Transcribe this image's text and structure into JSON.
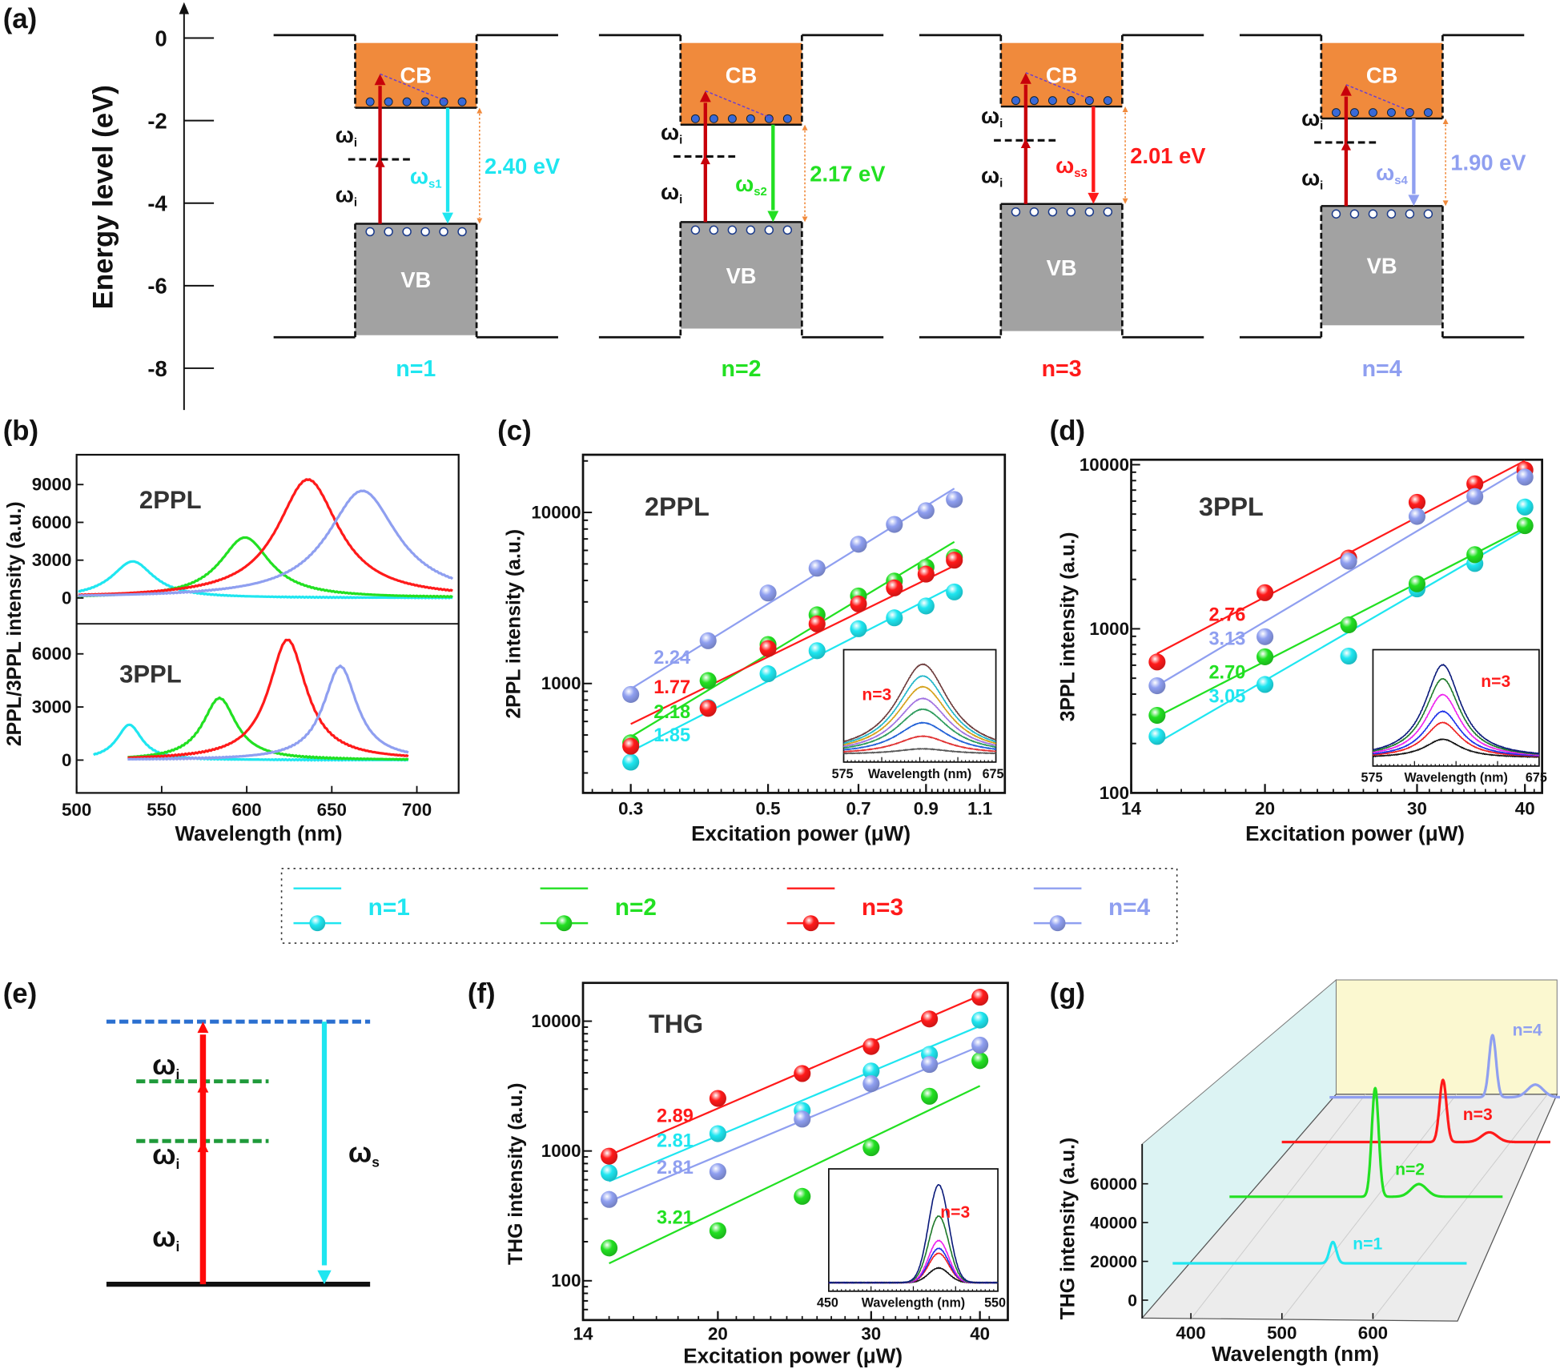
{
  "panel_labels": {
    "a": "(a)",
    "b": "(b)",
    "c": "(c)",
    "d": "(d)",
    "e": "(e)",
    "f": "(f)",
    "g": "(g)"
  },
  "colors": {
    "n1": "#1fe6f0",
    "n2": "#22e022",
    "n3": "#ff1a1a",
    "n4": "#8f9ff0",
    "excitation": "#c8000a",
    "cb_fill": "#f08a3c",
    "vb_fill": "#a2a2a2",
    "gap_marker": "#f08a3c",
    "relaxation": "#6a3fd0"
  },
  "legend": [
    {
      "label": "n=1",
      "color": "#1fe6f0"
    },
    {
      "label": "n=2",
      "color": "#22e022"
    },
    {
      "label": "n=3",
      "color": "#ff1a1a"
    },
    {
      "label": "n=4",
      "color": "#8f9ff0"
    }
  ],
  "energy_diagram": {
    "ylabel": "Energy level (eV)",
    "yticks": [
      0,
      -2,
      -4,
      -6,
      -8
    ],
    "cb_label": "CB",
    "vb_label": "VB",
    "omega": "ω",
    "excitation_sub": "i",
    "barrier_top": 0.07,
    "barrier_bottom": -7.25,
    "cb_top": -0.12,
    "wells": [
      {
        "n_label": "n=1",
        "gap_label": "2.40 eV",
        "emission_sub": "s1",
        "cb_min": -1.69,
        "vb_max": -4.5,
        "vb_bottom": -7.2,
        "virtual": -2.94,
        "color": "#1fe6f0"
      },
      {
        "n_label": "n=2",
        "gap_label": "2.17 eV",
        "emission_sub": "s2",
        "cb_min": -2.1,
        "vb_max": -4.46,
        "vb_bottom": -7.04,
        "virtual": -2.87,
        "color": "#22e022"
      },
      {
        "n_label": "n=3",
        "gap_label": "2.01 eV",
        "emission_sub": "s3",
        "cb_min": -1.66,
        "vb_max": -4.02,
        "vb_bottom": -7.1,
        "virtual": -2.48,
        "color": "#ff1a1a"
      },
      {
        "n_label": "n=4",
        "gap_label": "1.90 eV",
        "emission_sub": "s4",
        "cb_min": -1.95,
        "vb_max": -4.07,
        "vb_bottom": -6.96,
        "virtual": -2.53,
        "color": "#8f9ff0"
      }
    ]
  },
  "level_diagram": {
    "omega": "ω",
    "excitation_sub": "i",
    "emission_sub": "s",
    "virtual_levels": 2
  },
  "chart_data": [
    {
      "panel": "b",
      "type": "line",
      "ylabel": "2PPL/3PPL intensity (a.u.)",
      "xlabel": "Wavelength (nm)",
      "xticks": [
        500,
        550,
        600,
        650,
        700
      ],
      "xlim": [
        500,
        722
      ],
      "subplots": [
        {
          "title": "2PPL",
          "yticks": [
            0,
            3000,
            6000,
            9000
          ],
          "ylim": [
            -1900,
            11500
          ],
          "series": [
            {
              "key": "n1",
              "peak_nm": 533,
              "peak_intensity": 2900,
              "fwhm_nm": 30,
              "wl_range": [
                501,
                721
              ]
            },
            {
              "key": "n2",
              "peak_nm": 599,
              "peak_intensity": 4800,
              "fwhm_nm": 36,
              "wl_range": [
                501,
                721
              ]
            },
            {
              "key": "n3",
              "peak_nm": 636,
              "peak_intensity": 9400,
              "fwhm_nm": 44,
              "wl_range": [
                501,
                721
              ]
            },
            {
              "key": "n4",
              "peak_nm": 668,
              "peak_intensity": 8500,
              "fwhm_nm": 50,
              "wl_range": [
                501,
                721
              ]
            }
          ]
        },
        {
          "title": "3PPL",
          "yticks": [
            0,
            3000,
            6000
          ],
          "ylim": [
            -1900,
            7600
          ],
          "series": [
            {
              "key": "n1",
              "peak_nm": 531,
              "peak_intensity": 2000,
              "fwhm_nm": 18,
              "wl_range": [
                510,
                695
              ]
            },
            {
              "key": "n2",
              "peak_nm": 584,
              "peak_intensity": 3500,
              "fwhm_nm": 24,
              "wl_range": [
                530,
                695
              ]
            },
            {
              "key": "n3",
              "peak_nm": 624,
              "peak_intensity": 6800,
              "fwhm_nm": 27,
              "wl_range": [
                530,
                695
              ]
            },
            {
              "key": "n4",
              "peak_nm": 655,
              "peak_intensity": 5300,
              "fwhm_nm": 24,
              "wl_range": [
                530,
                695
              ]
            }
          ]
        }
      ]
    },
    {
      "panel": "c",
      "type": "scatter",
      "title": "2PPL",
      "xlabel": "Excitation power (μW)",
      "ylabel": "2PPL intensity (a.u.)",
      "xscale": "log",
      "yscale": "log",
      "xticks": [
        0.3,
        0.5,
        0.7,
        0.9,
        1.1
      ],
      "yticks": [
        1000,
        10000
      ],
      "xlim": [
        0.24,
        1.15
      ],
      "ylim": [
        229,
        21700
      ],
      "x": [
        0.3,
        0.4,
        0.5,
        0.6,
        0.7,
        0.8,
        0.9,
        1.0
      ],
      "series": [
        {
          "key": "n1",
          "slope_label": "1.85",
          "slope": 1.85,
          "values": [
            347,
            725,
            1140,
            1555,
            2090,
            2420,
            2840,
            3430
          ]
        },
        {
          "key": "n2",
          "slope_label": "2.18",
          "slope": 2.18,
          "values": [
            450,
            1040,
            1690,
            2520,
            3250,
            3970,
            4790,
            5470
          ]
        },
        {
          "key": "n3",
          "slope_label": "1.77",
          "slope": 1.77,
          "values": [
            430,
            716,
            1600,
            2230,
            2920,
            3620,
            4360,
            5260
          ]
        },
        {
          "key": "n4",
          "slope_label": "2.24",
          "slope": 2.24,
          "values": [
            863,
            1778,
            3380,
            4720,
            6520,
            8510,
            10240,
            11900
          ]
        }
      ],
      "inset": {
        "label": "n=3",
        "xlabel": "Wavelength (nm)",
        "xmin_label": "575",
        "xmax_label": "675",
        "xlim": [
          575,
          675
        ],
        "peak_nm": 627,
        "fwhm_nm": 42,
        "amplitudes": [
          0.06,
          0.2,
          0.35,
          0.5,
          0.62,
          0.75,
          0.87,
          1.0
        ],
        "curve_colors": [
          "#555555",
          "#e03030",
          "#1f5fd6",
          "#2a9a5a",
          "#a070e0",
          "#d4a017",
          "#1fb5c8",
          "#6b3a3a"
        ]
      }
    },
    {
      "panel": "d",
      "type": "scatter",
      "title": "3PPL",
      "xlabel": "Excitation power (μW)",
      "ylabel": "3PPL intensity (a.u.)",
      "xscale": "log",
      "yscale": "log",
      "xticks": [
        14,
        20,
        30,
        40
      ],
      "yticks": [
        100,
        1000,
        10000
      ],
      "xlim": [
        14,
        41.8
      ],
      "ylim": [
        100,
        10300
      ],
      "x": [
        15,
        20,
        25,
        30,
        35,
        40
      ],
      "series": [
        {
          "key": "n1",
          "slope_label": "3.05",
          "slope": 3.05,
          "values": [
            221,
            458,
            682,
            1750,
            2500,
            5520
          ]
        },
        {
          "key": "n2",
          "slope_label": "2.70",
          "slope": 2.7,
          "values": [
            297,
            675,
            1057,
            1880,
            2830,
            4250
          ]
        },
        {
          "key": "n3",
          "slope_label": "2.76",
          "slope": 2.76,
          "values": [
            628,
            1660,
            2700,
            5900,
            7650,
            9290
          ]
        },
        {
          "key": "n4",
          "slope_label": "3.13",
          "slope": 3.13,
          "values": [
            450,
            895,
            2580,
            4840,
            6400,
            8400
          ]
        }
      ],
      "inset": {
        "label": "n=3",
        "xlabel": "Wavelength (nm)",
        "xmin_label": "575",
        "xmax_label": "675",
        "xlim": [
          575,
          675
        ],
        "peak_nm": 617,
        "fwhm_nm": 26,
        "amplitudes": [
          0.2,
          0.38,
          0.5,
          0.68,
          0.85,
          1.0
        ],
        "curve_colors": [
          "#111111",
          "#ee2020",
          "#1a2ee8",
          "#ee20ee",
          "#1e7a2a",
          "#0a1a7a"
        ]
      }
    },
    {
      "panel": "f",
      "type": "scatter",
      "title": "THG",
      "xlabel": "Excitation power (μW)",
      "ylabel": "THG intensity (a.u.)",
      "xscale": "log",
      "yscale": "log",
      "xticks": [
        14,
        20,
        30,
        40
      ],
      "yticks": [
        100,
        1000,
        10000
      ],
      "xlim": [
        14,
        41.8
      ],
      "ylim": [
        72,
        22000
      ],
      "x": [
        15,
        20,
        25,
        30,
        35,
        40
      ],
      "series": [
        {
          "key": "n1",
          "slope_label": "2.81",
          "slope": 2.81,
          "values": [
            678,
            1360,
            2050,
            4130,
            5550,
            10200
          ]
        },
        {
          "key": "n2",
          "slope_label": "3.21",
          "slope": 3.21,
          "values": [
            179,
            243,
            447,
            1060,
            2640,
            4970
          ]
        },
        {
          "key": "n3",
          "slope_label": "2.89",
          "slope": 2.89,
          "values": [
            912,
            2540,
            3950,
            6380,
            10400,
            15300
          ]
        },
        {
          "key": "n4",
          "slope_label": "2.81",
          "slope": 2.81,
          "values": [
            423,
            693,
            1760,
            3300,
            4640,
            6540
          ]
        }
      ],
      "inset": {
        "label": "n=3",
        "xlabel": "Wavelength (nm)",
        "xmin_label": "450",
        "xmax_label": "550",
        "xlim": [
          450,
          550
        ],
        "peak_nm": 515,
        "fwhm_nm": 14,
        "amplitudes": [
          0.15,
          0.3,
          0.35,
          0.43,
          0.68,
          1.0
        ],
        "curve_colors": [
          "#111111",
          "#ee2020",
          "#1a2ee8",
          "#ee20ee",
          "#1e7a2a",
          "#0a1a7a"
        ]
      }
    },
    {
      "panel": "g",
      "type": "line",
      "projection": "3d-waterfall",
      "xlabel": "Wavelength (nm)",
      "ylabel": "THG intensity (a.u.)",
      "xticks": [
        400,
        500,
        600
      ],
      "yticks": [
        0,
        20000,
        40000,
        60000
      ],
      "series": [
        {
          "key": "n1",
          "label": "n=1",
          "peak_nm": 556,
          "peak_intensity": 11000,
          "shoulder_nm": 0,
          "shoulder_intensity": 0
        },
        {
          "key": "n2",
          "label": "n=2",
          "peak_nm": 550,
          "peak_intensity": 56000,
          "shoulder_nm": 598,
          "shoulder_intensity": 6500
        },
        {
          "key": "n3",
          "label": "n=3",
          "peak_nm": 572,
          "peak_intensity": 32000,
          "shoulder_nm": 623,
          "shoulder_intensity": 5000
        },
        {
          "key": "n4",
          "label": "n=4",
          "peak_nm": 574,
          "peak_intensity": 32000,
          "shoulder_nm": 621,
          "shoulder_intensity": 6500
        }
      ]
    }
  ]
}
